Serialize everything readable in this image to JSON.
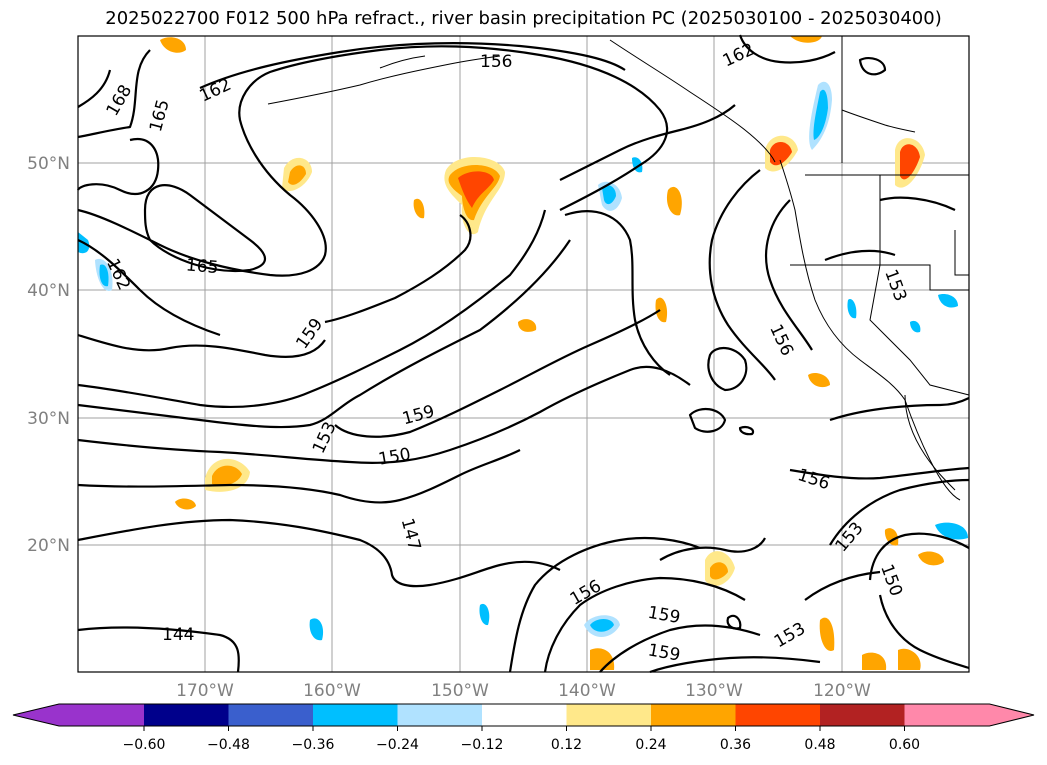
{
  "title": "2025022700 F012 500 hPa refract., river basin precipitation PC (2025030100 - 2025030400)",
  "lat_labels": [
    "50°N",
    "40°N",
    "30°N",
    "20°N"
  ],
  "lon_labels": [
    "170°W",
    "160°W",
    "150°W",
    "140°W",
    "130°W",
    "120°W"
  ],
  "contour_labels": [
    "156",
    "162",
    "168",
    "165",
    "162",
    "165",
    "162",
    "159",
    "153",
    "159",
    "150",
    "147",
    "144",
    "156",
    "153",
    "150",
    "156",
    "159",
    "156",
    "159",
    "153"
  ],
  "colorbar": {
    "ticks": [
      "−0.60",
      "−0.48",
      "−0.36",
      "−0.24",
      "−0.12",
      "0.12",
      "0.24",
      "0.36",
      "0.48",
      "0.60"
    ],
    "colors": [
      "#9933cc",
      "#00008b",
      "#3a5fcd",
      "#00bfff",
      "#b0e2ff",
      "#ffffff",
      "#ffe88a",
      "#ffa500",
      "#ff4500",
      "#b22222",
      "#ff88aa"
    ]
  }
}
